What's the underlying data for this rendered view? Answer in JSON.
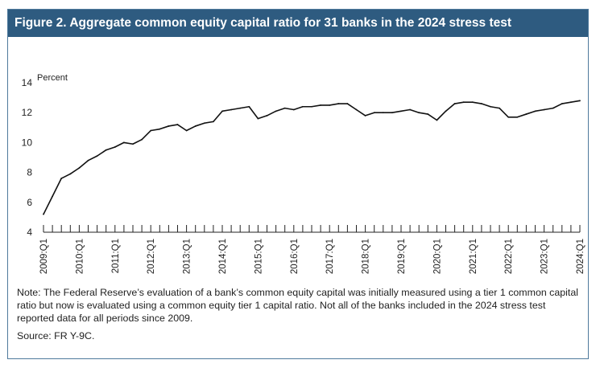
{
  "title": "Figure 2. Aggregate common equity capital ratio for 31 banks in the 2024 stress test",
  "note": "Note: The Federal Reserve’s evaluation of a bank’s common equity capital was initially measured using a tier 1 common capital ratio but now is evaluated using a common equity tier 1 capital ratio. Not all of the banks included in the 2024 stress test reported data for all periods since 2009.",
  "source": "Source: FR Y-9C.",
  "chart_data": {
    "type": "line",
    "title": "",
    "xlabel": "",
    "ylabel": "Percent",
    "ylim": [
      4,
      14
    ],
    "yticks": [
      4,
      6,
      8,
      10,
      12,
      14
    ],
    "grid": false,
    "x_tick_labels": [
      "2009:Q1",
      "2010:Q1",
      "2011:Q1",
      "2012:Q1",
      "2013:Q1",
      "2014:Q1",
      "2015:Q1",
      "2016:Q1",
      "2017:Q1",
      "2018:Q1",
      "2019:Q1",
      "2020:Q1",
      "2021:Q1",
      "2022:Q1",
      "2023:Q1",
      "2024:Q1"
    ],
    "x": [
      "2009:Q1",
      "2009:Q2",
      "2009:Q3",
      "2009:Q4",
      "2010:Q1",
      "2010:Q2",
      "2010:Q3",
      "2010:Q4",
      "2011:Q1",
      "2011:Q2",
      "2011:Q3",
      "2011:Q4",
      "2012:Q1",
      "2012:Q2",
      "2012:Q3",
      "2012:Q4",
      "2013:Q1",
      "2013:Q2",
      "2013:Q3",
      "2013:Q4",
      "2014:Q1",
      "2014:Q2",
      "2014:Q3",
      "2014:Q4",
      "2015:Q1",
      "2015:Q2",
      "2015:Q3",
      "2015:Q4",
      "2016:Q1",
      "2016:Q2",
      "2016:Q3",
      "2016:Q4",
      "2017:Q1",
      "2017:Q2",
      "2017:Q3",
      "2017:Q4",
      "2018:Q1",
      "2018:Q2",
      "2018:Q3",
      "2018:Q4",
      "2019:Q1",
      "2019:Q2",
      "2019:Q3",
      "2019:Q4",
      "2020:Q1",
      "2020:Q2",
      "2020:Q3",
      "2020:Q4",
      "2021:Q1",
      "2021:Q2",
      "2021:Q3",
      "2021:Q4",
      "2022:Q1",
      "2022:Q2",
      "2022:Q3",
      "2022:Q4",
      "2023:Q1",
      "2023:Q2",
      "2023:Q3",
      "2023:Q4",
      "2024:Q1"
    ],
    "values": [
      5.2,
      6.4,
      7.6,
      7.9,
      8.3,
      8.8,
      9.1,
      9.5,
      9.7,
      10.0,
      9.9,
      10.2,
      10.8,
      10.9,
      11.1,
      11.2,
      10.8,
      11.1,
      11.3,
      11.4,
      12.1,
      12.2,
      12.3,
      12.4,
      11.6,
      11.8,
      12.1,
      12.3,
      12.2,
      12.4,
      12.4,
      12.5,
      12.5,
      12.6,
      12.6,
      12.2,
      11.8,
      12.0,
      12.0,
      12.0,
      12.1,
      12.2,
      12.0,
      11.9,
      11.5,
      12.1,
      12.6,
      12.7,
      12.7,
      12.6,
      12.4,
      12.3,
      11.7,
      11.7,
      11.9,
      12.1,
      12.2,
      12.3,
      12.6,
      12.7,
      12.8
    ]
  }
}
